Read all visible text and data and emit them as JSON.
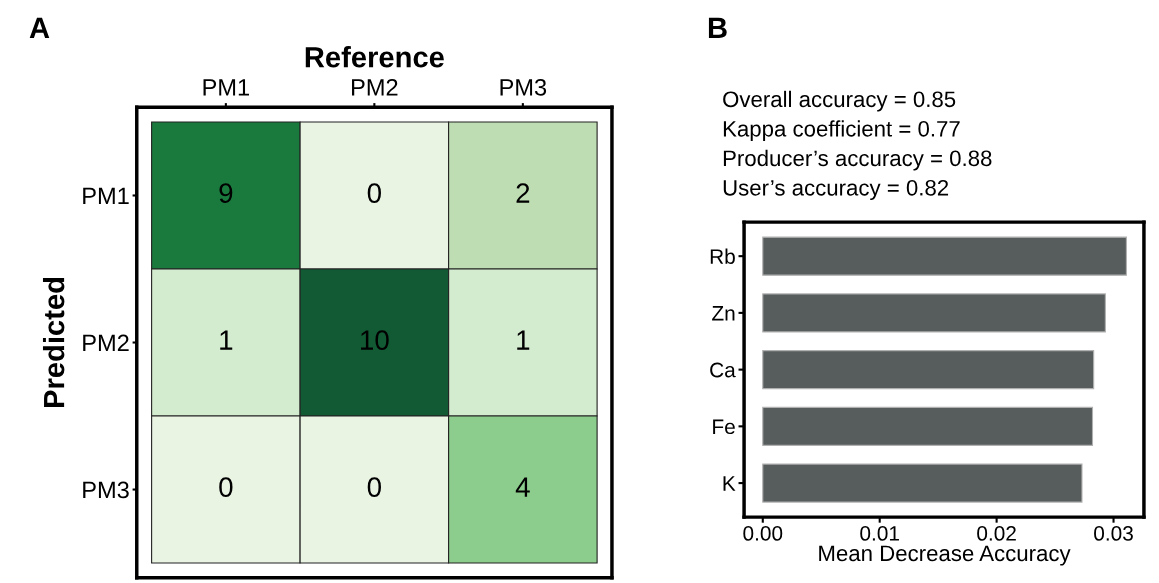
{
  "chart_data": [
    {
      "type": "heatmap",
      "title": "A",
      "xlabel": "Reference",
      "ylabel": "Predicted",
      "categories": [
        "PM1",
        "PM2",
        "PM3"
      ],
      "y_categories": [
        "PM1",
        "PM2",
        "PM3"
      ],
      "cells": [
        [
          9,
          0,
          2
        ],
        [
          1,
          10,
          1
        ],
        [
          0,
          0,
          4
        ]
      ],
      "colors": [
        [
          "#1a7a3e",
          "#e9f4e3",
          "#bfddb3"
        ],
        [
          "#d3ebcf",
          "#115a34",
          "#d3ebcf"
        ],
        [
          "#e9f4e3",
          "#e9f4e3",
          "#8ccc8c"
        ]
      ],
      "data_labels": true
    },
    {
      "type": "bar",
      "orientation": "horizontal",
      "title": "B",
      "xlabel": "Mean Decrease Accuracy",
      "annotations": [
        "Overall accuracy = 0.85",
        "Kappa coefficient = 0.77",
        "Producer’s accuracy = 0.88",
        "User’s accuracy = 0.82"
      ],
      "categories": [
        "Rb",
        "Zn",
        "Ca",
        "Fe",
        "K"
      ],
      "values": [
        0.0311,
        0.0293,
        0.0283,
        0.0282,
        0.0273
      ],
      "color": "#575c5c",
      "xlim": [
        -0.0016,
        0.0326
      ],
      "xticks": [
        {
          "value": 0,
          "label": "0.00"
        },
        {
          "value": 0.01,
          "label": "0.01"
        },
        {
          "value": 0.02,
          "label": "0.02"
        },
        {
          "value": 0.03,
          "label": "0.03"
        }
      ],
      "grid": false
    }
  ]
}
